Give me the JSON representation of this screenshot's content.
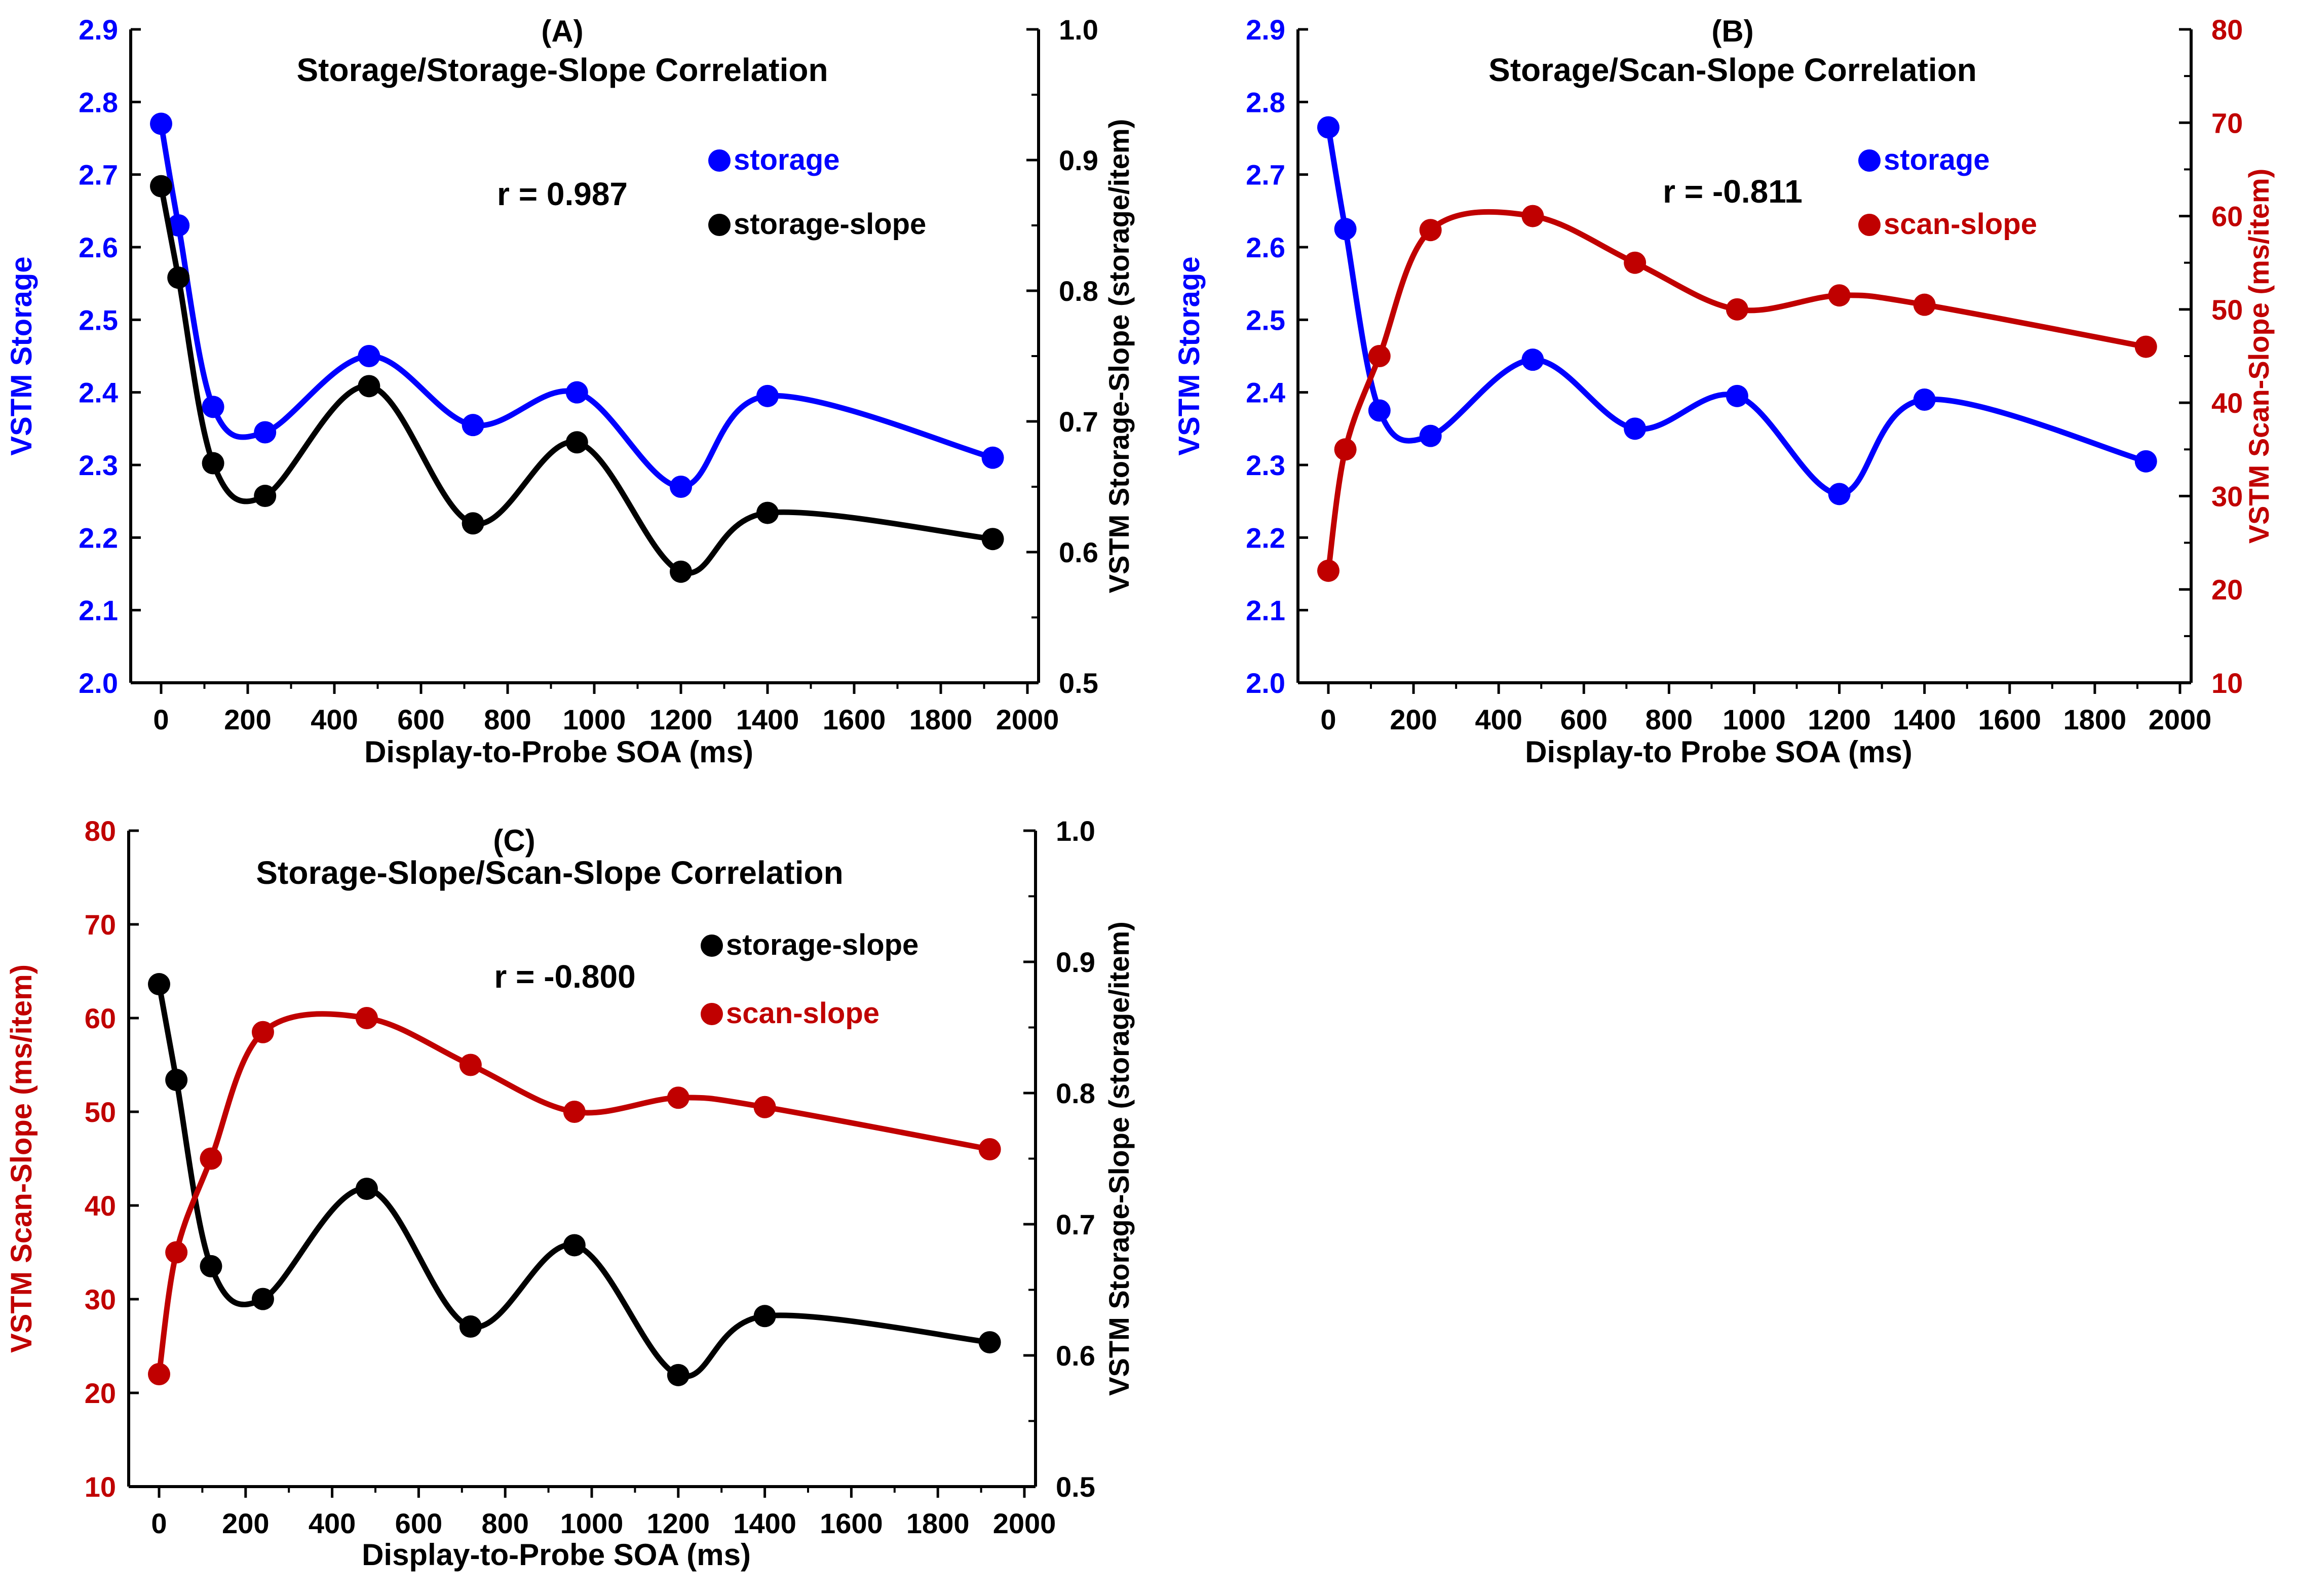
{
  "colors": {
    "blue": "#0000ff",
    "red": "#c00000",
    "black": "#000000"
  },
  "chart_data": [
    {
      "id": "A",
      "type": "line",
      "panel_label": "(A)",
      "title": "Storage/Storage-Slope Correlation",
      "xlabel": "Display-to-Probe SOA (ms)",
      "xlim": [
        0,
        2000
      ],
      "xticks": [
        "0",
        "200",
        "400",
        "600",
        "800",
        "1000",
        "1200",
        "1400",
        "1600",
        "1800",
        "2000"
      ],
      "left_axis": {
        "label": "VSTM Storage",
        "lim": [
          2.0,
          2.9
        ],
        "ticks": [
          "2.0",
          "2.1",
          "2.2",
          "2.3",
          "2.4",
          "2.5",
          "2.6",
          "2.7",
          "2.8",
          "2.9"
        ],
        "color": "#0000ff"
      },
      "right_axis": {
        "label": "VSTM Storage-Slope (storage/item)",
        "lim": [
          0.5,
          1.0
        ],
        "ticks": [
          "0.5",
          "0.6",
          "0.7",
          "0.8",
          "0.9",
          "1.0"
        ],
        "color": "#000000"
      },
      "correlation": "r = 0.987",
      "series": [
        {
          "name": "storage",
          "axis": "left",
          "color": "#0000ff",
          "x": [
            0,
            40,
            120,
            240,
            480,
            720,
            960,
            1200,
            1400,
            1920
          ],
          "y": [
            2.77,
            2.63,
            2.38,
            2.345,
            2.45,
            2.355,
            2.4,
            2.27,
            2.395,
            2.31
          ]
        },
        {
          "name": "storage-slope",
          "axis": "right",
          "color": "#000000",
          "x": [
            0,
            40,
            120,
            240,
            480,
            720,
            960,
            1200,
            1400,
            1920
          ],
          "y": [
            0.88,
            0.81,
            0.668,
            0.643,
            0.727,
            0.622,
            0.684,
            0.585,
            0.63,
            0.61
          ]
        }
      ]
    },
    {
      "id": "B",
      "type": "line",
      "panel_label": "(B)",
      "title": "Storage/Scan-Slope Correlation",
      "xlabel": "Display-to Probe SOA (ms)",
      "xlim": [
        0,
        2000
      ],
      "xticks": [
        "0",
        "200",
        "400",
        "600",
        "800",
        "1000",
        "1200",
        "1400",
        "1600",
        "1800",
        "2000"
      ],
      "left_axis": {
        "label": "VSTM Storage",
        "lim": [
          2.0,
          2.9
        ],
        "ticks": [
          "2.0",
          "2.1",
          "2.2",
          "2.3",
          "2.4",
          "2.5",
          "2.6",
          "2.7",
          "2.8",
          "2.9"
        ],
        "color": "#0000ff"
      },
      "right_axis": {
        "label": "VSTM Scan-Slope (ms/item)",
        "lim": [
          10,
          80
        ],
        "ticks": [
          "10",
          "20",
          "30",
          "40",
          "50",
          "60",
          "70",
          "80"
        ],
        "color": "#c00000"
      },
      "correlation": "r = -0.811",
      "series": [
        {
          "name": "storage",
          "axis": "left",
          "color": "#0000ff",
          "x": [
            0,
            40,
            120,
            240,
            480,
            720,
            960,
            1200,
            1400,
            1920
          ],
          "y": [
            2.765,
            2.625,
            2.375,
            2.34,
            2.445,
            2.35,
            2.395,
            2.26,
            2.39,
            2.305
          ]
        },
        {
          "name": "scan-slope",
          "axis": "right",
          "color": "#c00000",
          "x": [
            0,
            40,
            120,
            240,
            480,
            720,
            960,
            1200,
            1400,
            1920
          ],
          "y": [
            22,
            35,
            45,
            58.5,
            60,
            55,
            50,
            51.5,
            50.5,
            46
          ]
        }
      ]
    },
    {
      "id": "C",
      "type": "line",
      "panel_label": "(C)",
      "title": "Storage-Slope/Scan-Slope Correlation",
      "xlabel": "Display-to-Probe SOA (ms)",
      "xlim": [
        0,
        2000
      ],
      "xticks": [
        "0",
        "200",
        "400",
        "600",
        "800",
        "1000",
        "1200",
        "1400",
        "1600",
        "1800",
        "2000"
      ],
      "left_axis": {
        "label": "VSTM Scan-Slope (ms/item)",
        "lim": [
          10,
          80
        ],
        "ticks": [
          "10",
          "20",
          "30",
          "40",
          "50",
          "60",
          "70",
          "80"
        ],
        "color": "#c00000"
      },
      "right_axis": {
        "label": "VSTM Storage-Slope (storage/item)",
        "lim": [
          0.5,
          1.0
        ],
        "ticks": [
          "0.5",
          "0.6",
          "0.7",
          "0.8",
          "0.9",
          "1.0"
        ],
        "color": "#000000"
      },
      "correlation": "r = -0.800",
      "series": [
        {
          "name": "storage-slope",
          "axis": "right",
          "color": "#000000",
          "x": [
            0,
            40,
            120,
            240,
            480,
            720,
            960,
            1200,
            1400,
            1920
          ],
          "y": [
            0.883,
            0.81,
            0.668,
            0.643,
            0.727,
            0.622,
            0.684,
            0.585,
            0.63,
            0.61
          ]
        },
        {
          "name": "scan-slope",
          "axis": "left",
          "color": "#c00000",
          "x": [
            0,
            40,
            120,
            240,
            480,
            720,
            960,
            1200,
            1400,
            1920
          ],
          "y": [
            22,
            35,
            45,
            58.5,
            60,
            55,
            50,
            51.5,
            50.5,
            46
          ]
        }
      ]
    }
  ]
}
